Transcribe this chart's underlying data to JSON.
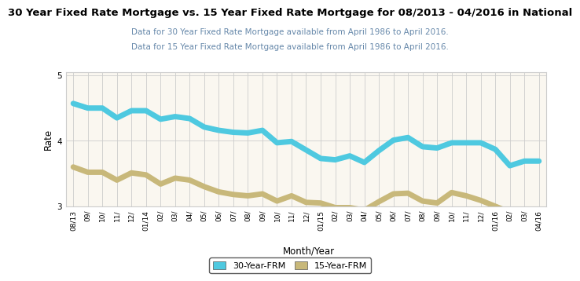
{
  "title": "30 Year Fixed Rate Mortgage vs. 15 Year Fixed Rate Mortgage for 08/2013 - 04/2016 in National",
  "subtitle1": "Data for 30 Year Fixed Rate Mortgage available from April 1986 to April 2016.",
  "subtitle2": "Data for 15 Year Fixed Rate Mortgage available from April 1986 to April 2016.",
  "xlabel": "Month/Year",
  "ylabel": "Rate",
  "ylim": [
    3.0,
    5.05
  ],
  "yticks": [
    3.0,
    4.0,
    5.0
  ],
  "plot_bg_color": "#faf7f0",
  "grid_color": "#cccccc",
  "color_30yr": "#4ec9e0",
  "color_15yr": "#c8b87a",
  "legend_label_30": "30-Year-FRM",
  "legend_label_15": "15-Year-FRM",
  "x_labels": [
    "08",
    "09",
    "10",
    "11",
    "12",
    "01",
    "02",
    "03",
    "04",
    "05",
    "06",
    "07",
    "08",
    "09",
    "10",
    "11",
    "12",
    "01",
    "02",
    "03",
    "04",
    "05",
    "06",
    "07",
    "08",
    "09",
    "10",
    "11",
    "12",
    "01",
    "02",
    "03",
    "04"
  ],
  "x_labels_bottom": [
    "08/",
    "09/",
    "10/",
    "11/",
    "12/",
    "01/",
    "02/",
    "03/",
    "04/",
    "05/",
    "06/",
    "07/",
    "08/",
    "09/",
    "10/",
    "11/",
    "12/",
    "01/",
    "02/",
    "03/",
    "04/",
    "05/",
    "06/",
    "07/",
    "08/",
    "09/",
    "10/",
    "11/",
    "12/",
    "01/",
    "02/",
    "03/",
    "04/"
  ],
  "data_30yr": [
    4.57,
    4.5,
    4.5,
    4.35,
    4.46,
    4.46,
    4.33,
    4.37,
    4.34,
    4.21,
    4.16,
    4.13,
    4.12,
    4.16,
    3.97,
    3.99,
    3.86,
    3.73,
    3.71,
    3.77,
    3.67,
    3.85,
    4.01,
    4.05,
    3.91,
    3.89,
    3.97,
    3.97,
    3.97,
    3.87,
    3.62,
    3.69,
    3.69
  ],
  "data_15yr": [
    3.6,
    3.52,
    3.52,
    3.4,
    3.51,
    3.48,
    3.34,
    3.43,
    3.4,
    3.3,
    3.22,
    3.18,
    3.16,
    3.19,
    3.08,
    3.16,
    3.06,
    3.05,
    2.98,
    2.98,
    2.94,
    3.07,
    3.19,
    3.2,
    3.08,
    3.05,
    3.21,
    3.16,
    3.09,
    3.0,
    2.91,
    2.93,
    2.91
  ],
  "linewidth": 5,
  "title_fontsize": 9.5,
  "subtitle_fontsize": 7.5,
  "tick_fontsize": 6.5,
  "axis_label_fontsize": 8.5,
  "legend_fontsize": 8,
  "subtitle_color": "#6688aa"
}
